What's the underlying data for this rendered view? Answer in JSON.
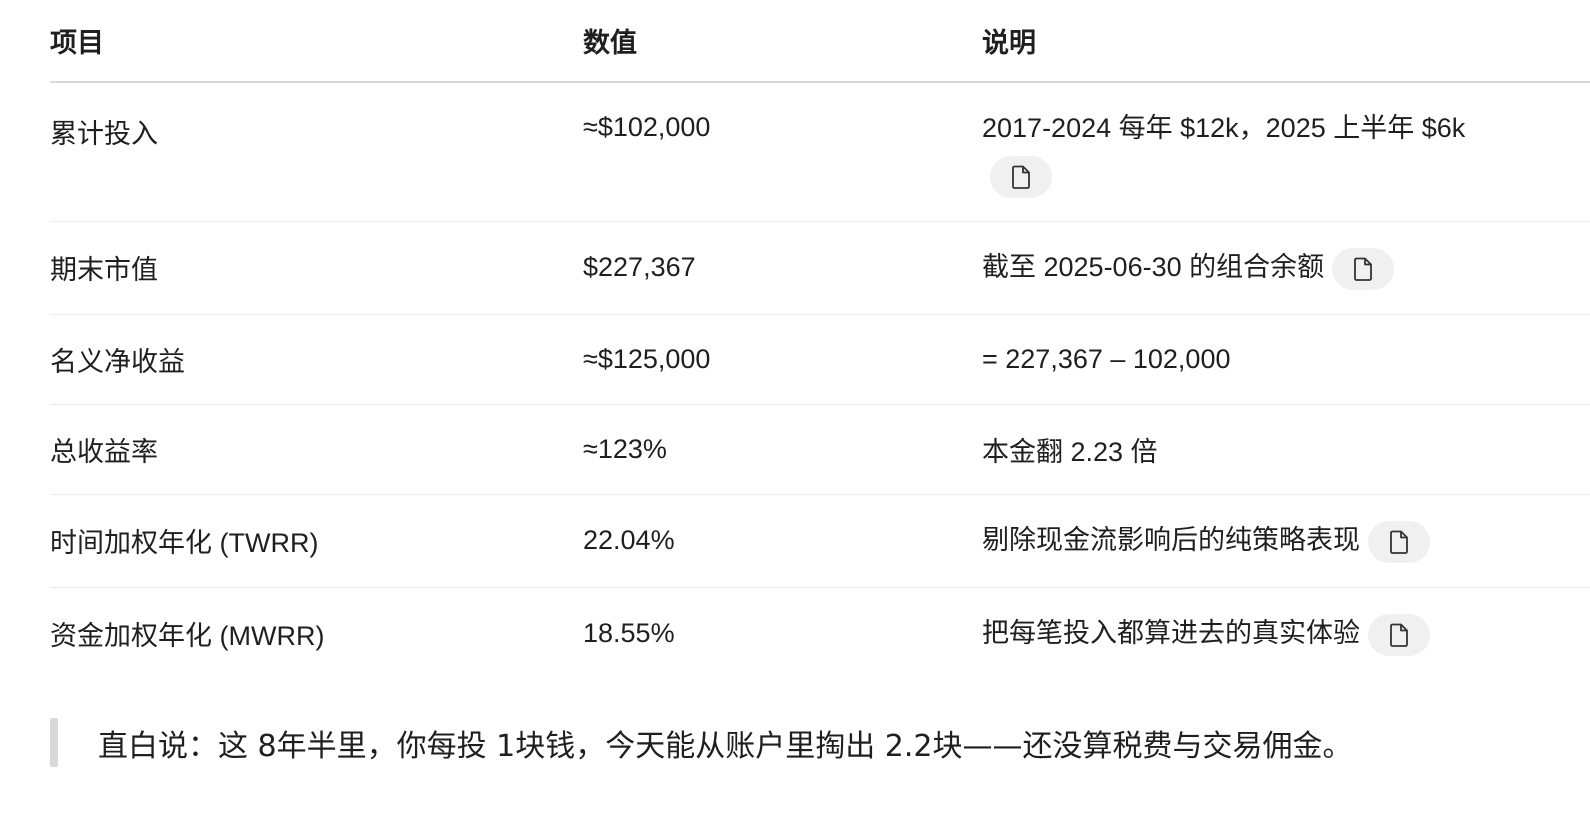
{
  "table": {
    "headers": [
      "项目",
      "数值",
      "说明"
    ],
    "rows": [
      {
        "item": "累计投入",
        "value": "≈$102,000",
        "note": "2017-2024 每年 $12k，2025 上半年 $6k",
        "copy": true
      },
      {
        "item": "期末市值",
        "value": "$227,367",
        "note": "截至 2025-06-30 的组合余额",
        "copy": true
      },
      {
        "item": "名义净收益",
        "value": "≈$125,000",
        "note": "= 227,367 – 102,000",
        "copy": false
      },
      {
        "item": "总收益率",
        "value": "≈123%",
        "note": "本金翻 2.23 倍",
        "copy": false
      },
      {
        "item": "时间加权年化 (TWRR)",
        "value": "22.04%",
        "note": "剔除现金流影响后的纯策略表现",
        "copy": true
      },
      {
        "item": "资金加权年化 (MWRR)",
        "value": "18.55%",
        "note": "把每笔投入都算进去的真实体验",
        "copy": true
      }
    ]
  },
  "quote": {
    "text": "直白说：这 8年半里，你每投 1块钱，今天能从账户里掏出 2.2块——还没算税费与交易佣金。"
  },
  "icons": {
    "copy": "copy-icon"
  }
}
